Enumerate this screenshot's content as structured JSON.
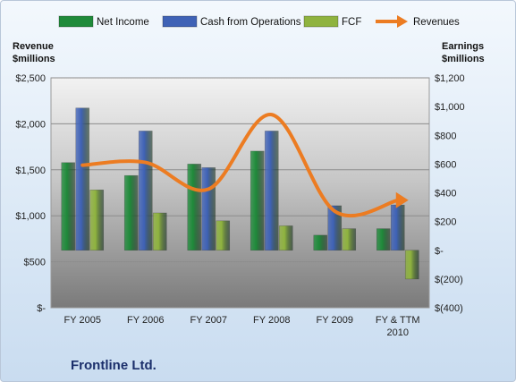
{
  "chart_data": {
    "type": "bar",
    "categories": [
      "FY 2005",
      "FY 2006",
      "FY 2007",
      "FY 2008",
      "FY 2009",
      "FY & TTM 2010"
    ],
    "category_lines": [
      [
        "FY 2005"
      ],
      [
        "FY 2006"
      ],
      [
        "FY 2007"
      ],
      [
        "FY 2008"
      ],
      [
        "FY 2009"
      ],
      [
        "FY & TTM",
        "2010"
      ]
    ],
    "company": "Frontline Ltd.",
    "left_axis": {
      "title_lines": [
        "Revenue",
        "$millions"
      ],
      "ylim": [
        0,
        2500
      ],
      "ticks": [
        0,
        500,
        1000,
        1500,
        2000,
        2500
      ],
      "tick_labels": [
        "$-",
        "$500",
        "$1,000",
        "$1,500",
        "$2,000",
        "$2,500"
      ]
    },
    "right_axis": {
      "title_lines": [
        "Earnings",
        "$millions"
      ],
      "ylim": [
        -400,
        1200
      ],
      "ticks": [
        -400,
        -200,
        0,
        200,
        400,
        600,
        800,
        1000,
        1200
      ],
      "tick_labels": [
        "$(400)",
        "$(200)",
        "$-",
        "$200",
        "$400",
        "$600",
        "$800",
        "$1,000",
        "$1,200"
      ]
    },
    "series": [
      {
        "name": "Net Income",
        "kind": "bar",
        "axis": "right",
        "color": "#1f8a3a",
        "values": [
          610,
          520,
          600,
          690,
          105,
          150
        ]
      },
      {
        "name": "Cash from Operations",
        "kind": "bar",
        "axis": "right",
        "color": "#3f62b6",
        "values": [
          990,
          830,
          575,
          830,
          310,
          315
        ]
      },
      {
        "name": "FCF",
        "kind": "bar",
        "axis": "right",
        "color": "#8fb33f",
        "values": [
          420,
          260,
          205,
          170,
          150,
          -200
        ]
      },
      {
        "name": "Revenues",
        "kind": "line",
        "axis": "left",
        "color": "#ec7c22",
        "values": [
          1550,
          1580,
          1290,
          2100,
          1050,
          1170
        ]
      }
    ],
    "grid": true,
    "legend_position": "top"
  }
}
